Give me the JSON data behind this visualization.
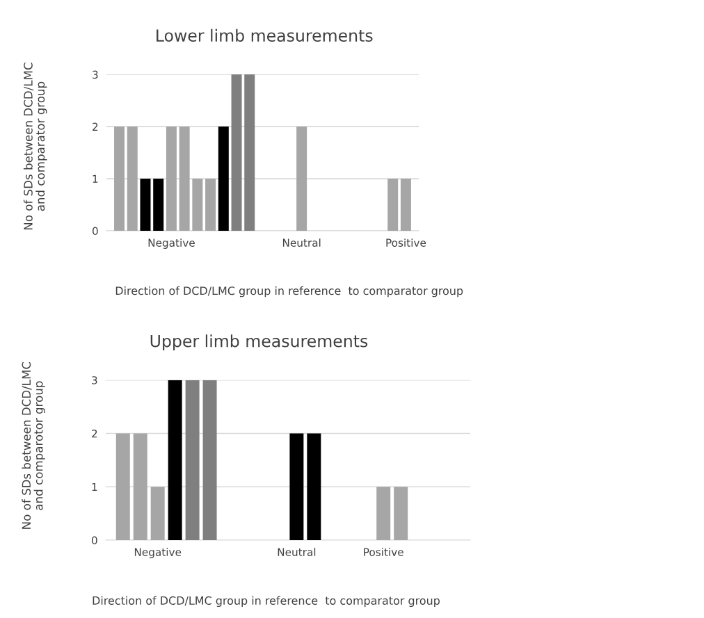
{
  "chart_data": [
    {
      "type": "bar",
      "title": "Lower limb measurements",
      "xlabel": "Direction of DCD/LMC group in reference  to comparator group",
      "ylabel": "No of SDs between DCD/LMC\nand comparator group",
      "categories": [
        null,
        null,
        null,
        null,
        "Negative",
        null,
        null,
        null,
        null,
        null,
        null,
        null,
        null,
        null,
        "Neutral",
        null,
        null,
        null,
        null,
        null,
        null,
        null,
        "Positive"
      ],
      "values": [
        2,
        2,
        1,
        1,
        2,
        2,
        1,
        1,
        2,
        3,
        3,
        null,
        null,
        null,
        2,
        null,
        null,
        null,
        null,
        null,
        null,
        1,
        1
      ],
      "colors": [
        "#a6a6a6",
        "#a6a6a6",
        "#000000",
        "#000000",
        "#a6a6a6",
        "#a6a6a6",
        "#a6a6a6",
        "#a6a6a6",
        "#000000",
        "#7f7f7f",
        "#7f7f7f",
        null,
        null,
        null,
        "#a6a6a6",
        null,
        null,
        null,
        null,
        null,
        null,
        "#a6a6a6",
        "#a6a6a6"
      ],
      "ylim": [
        0,
        3
      ],
      "yticks": [
        0,
        1,
        2,
        3
      ],
      "grid": "y"
    },
    {
      "type": "bar",
      "title": "Upper limb measurements",
      "xlabel": "Direction of DCD/LMC group in reference  to comparator group",
      "ylabel": "No of SDs between DCD/LMC\nand comparotor group",
      "categories": [
        null,
        null,
        "Negative",
        null,
        null,
        null,
        null,
        null,
        null,
        null,
        "Neutral",
        null,
        null,
        null,
        null,
        "Positive",
        null,
        null,
        null,
        null
      ],
      "values": [
        2,
        2,
        1,
        3,
        3,
        3,
        null,
        null,
        null,
        null,
        2,
        2,
        null,
        null,
        null,
        1,
        1,
        null,
        null,
        null
      ],
      "colors": [
        "#a6a6a6",
        "#a6a6a6",
        "#a6a6a6",
        "#000000",
        "#7f7f7f",
        "#7f7f7f",
        null,
        null,
        null,
        null,
        "#000000",
        "#000000",
        null,
        null,
        null,
        "#a6a6a6",
        "#a6a6a6",
        null,
        null,
        null
      ],
      "ylim": [
        0,
        3
      ],
      "yticks": [
        0,
        1,
        2,
        3
      ],
      "grid": "y"
    }
  ]
}
